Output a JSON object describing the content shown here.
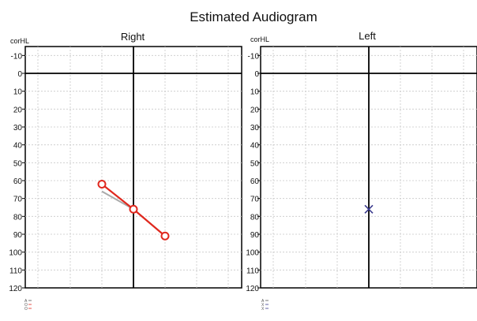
{
  "chart_data": {
    "title": "Estimated Audiogram",
    "type": "line",
    "ylim": [
      -15,
      120
    ],
    "yticks": [
      -10,
      0,
      10,
      20,
      30,
      40,
      50,
      60,
      70,
      80,
      90,
      100,
      110,
      120
    ],
    "unit_label": "corHL",
    "grid": true,
    "panels": [
      {
        "name": "Right",
        "series": [
          {
            "type": "estimated",
            "color": "#aaaaaa",
            "marker": "none",
            "points": [
              {
                "x": 2,
                "y": 66
              },
              {
                "x": 3,
                "y": 76
              },
              {
                "x": 4,
                "y": 91
              }
            ]
          },
          {
            "type": "measured",
            "color": "#e0281e",
            "marker": "circle",
            "points": [
              {
                "x": 2,
                "y": 62
              },
              {
                "x": 3,
                "y": 76
              },
              {
                "x": 4,
                "y": 91
              }
            ]
          }
        ]
      },
      {
        "name": "Left",
        "series": [
          {
            "type": "measured",
            "color": "#3a3a8c",
            "marker": "cross",
            "points": [
              {
                "x": 3,
                "y": 76
              }
            ]
          }
        ]
      }
    ],
    "legend": [
      {
        "glyph": "A",
        "color": "#555555"
      },
      {
        "glyph": "O",
        "color": "#e0281e"
      },
      {
        "glyph": "X",
        "color": "#3a3a8c"
      }
    ]
  }
}
